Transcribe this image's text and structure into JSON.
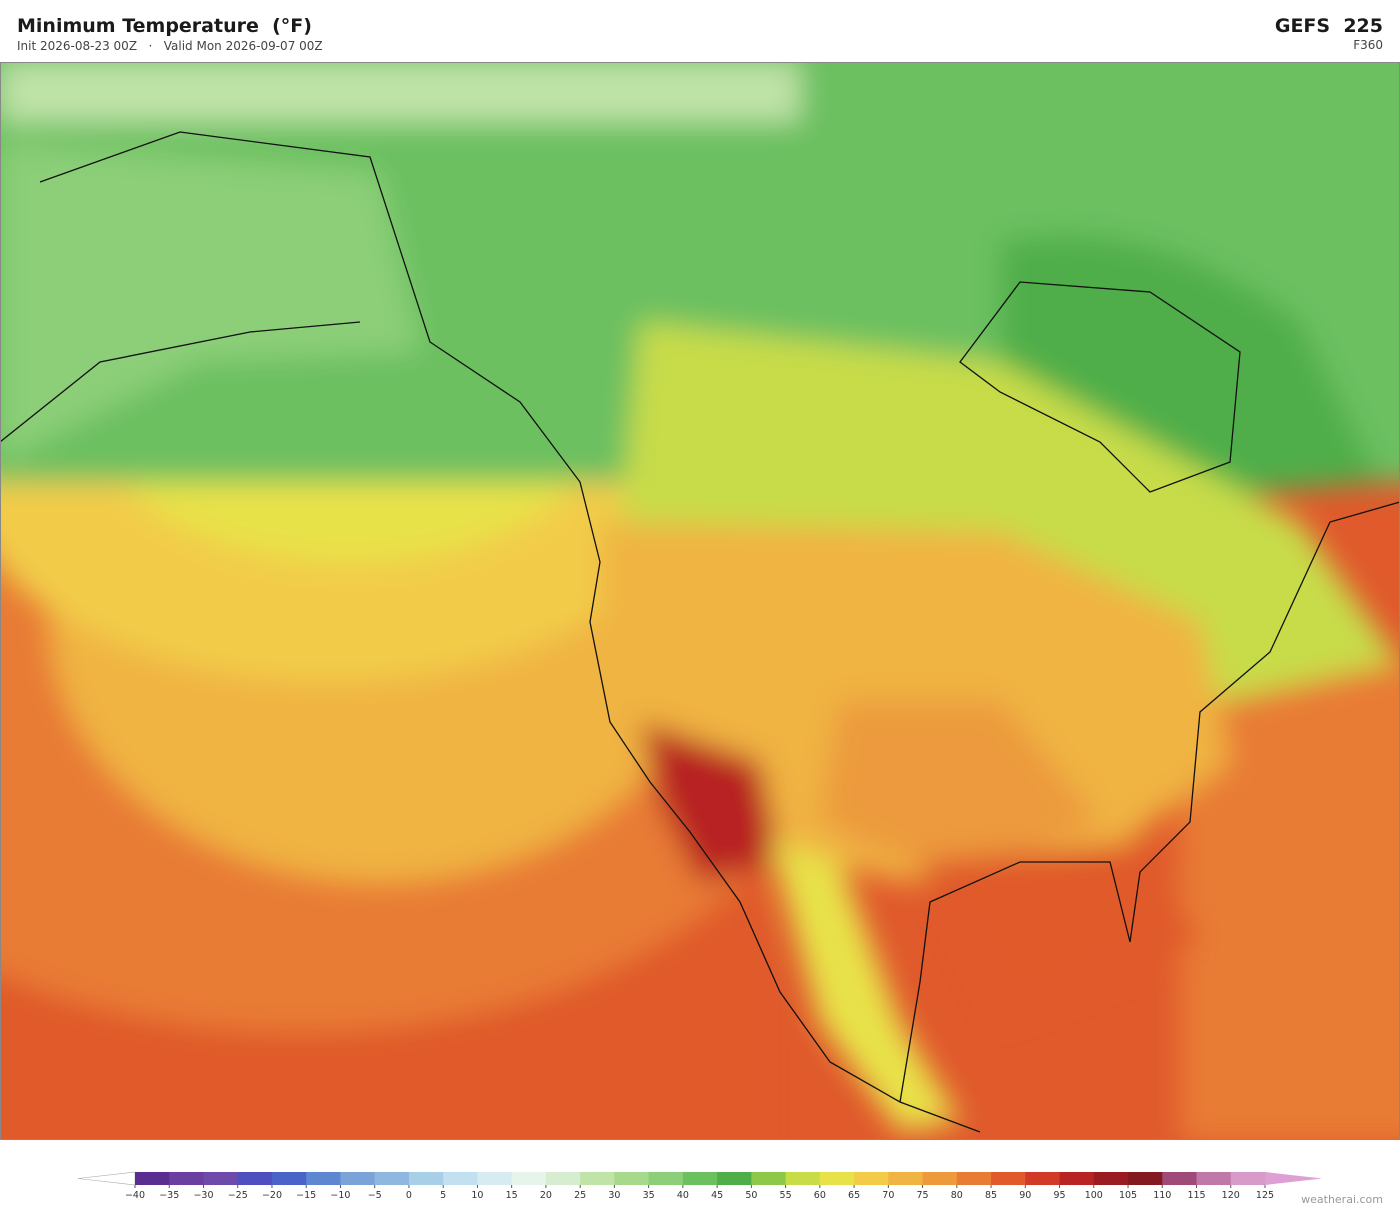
{
  "header": {
    "title": "Minimum Temperature  (°F)",
    "subtitle": "Init 2026-08-23 00Z   ·   Valid Mon 2026-09-07 00Z",
    "model": "GEFS  225",
    "forecast_hour": "F360"
  },
  "colorbar": {
    "ticks": [
      {
        "value": -40,
        "label": "−40"
      },
      {
        "value": -35,
        "label": "−35"
      },
      {
        "value": -30,
        "label": "−30"
      },
      {
        "value": -25,
        "label": "−25"
      },
      {
        "value": -20,
        "label": "−20"
      },
      {
        "value": -15,
        "label": "−15"
      },
      {
        "value": -10,
        "label": "−10"
      },
      {
        "value": -5,
        "label": "−5"
      },
      0,
      5,
      10,
      15,
      20,
      25,
      30,
      35,
      40,
      45,
      50,
      55,
      60,
      65,
      70,
      75,
      80,
      85,
      90,
      95,
      100,
      105,
      110,
      115,
      120,
      125
    ],
    "colors": [
      "#5a2d91",
      "#6a3fa0",
      "#6e4aab",
      "#4f4fc0",
      "#4a63c9",
      "#5d87d0",
      "#7aa3d8",
      "#8fb8e0",
      "#a8cfe8",
      "#c2e0ef",
      "#d6ecf2",
      "#e6f4ec",
      "#d6edd0",
      "#c0e3a8",
      "#a6d98c",
      "#8ccf78",
      "#6cc060",
      "#4fae4a",
      "#8cc84a",
      "#c8dc48",
      "#e8e24a",
      "#f2cc48",
      "#f0b442",
      "#ec9a3c",
      "#e87c34",
      "#e05a2c",
      "#d23a28",
      "#b82424",
      "#9a1c20",
      "#821a20",
      "#a04a7a",
      "#c078a8",
      "#d89ac8"
    ],
    "under_color": "#ffffff",
    "over_color": "#dca0d4"
  },
  "footer": {
    "watermark": "weatherai.com"
  }
}
